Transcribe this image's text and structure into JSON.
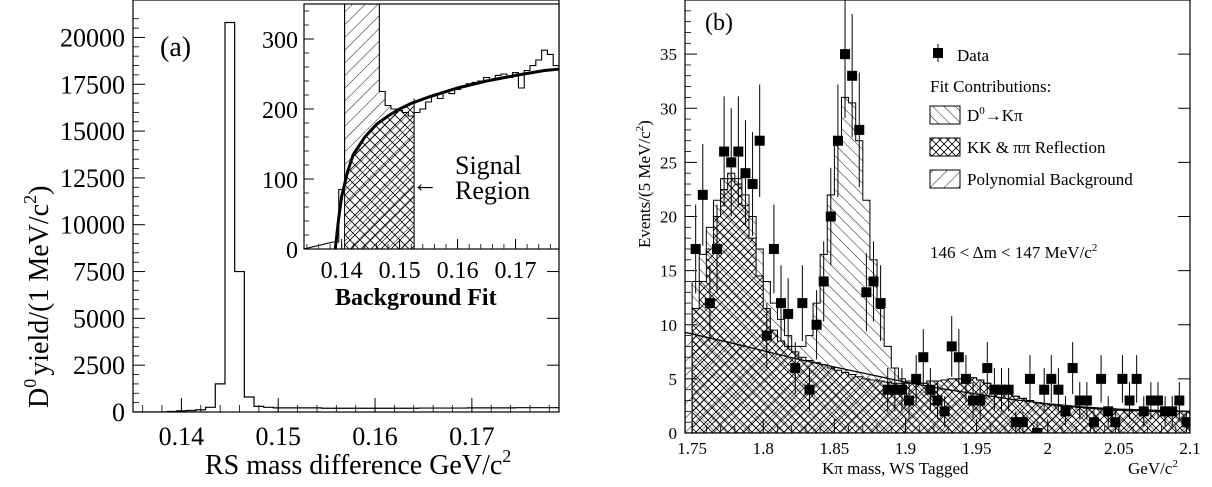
{
  "panel_a": {
    "label": "(a)",
    "ylabel_main": "yield/(1 MeV/c",
    "ylabel_tail": ")",
    "ylabel_d": "D",
    "ylabel_d_sup": "0",
    "ylabel_sup": "2",
    "xlabel_main": "RS mass difference   GeV/c",
    "xlabel_sup": "2",
    "chart_data": {
      "type": "bar",
      "xlim": [
        0.135,
        0.179
      ],
      "ylim": [
        0,
        22000
      ],
      "x_ticks": [
        "0.14",
        "0.15",
        "0.16",
        "0.17"
      ],
      "y_ticks": [
        "0",
        "2500",
        "5000",
        "7500",
        "10000",
        "12500",
        "15000",
        "17500",
        "20000"
      ],
      "bin_width": 0.001,
      "x": [
        0.139,
        0.14,
        0.141,
        0.142,
        0.143,
        0.144,
        0.145,
        0.146,
        0.147,
        0.148,
        0.149,
        0.15,
        0.155,
        0.16,
        0.165,
        0.17,
        0.175
      ],
      "values": [
        30,
        60,
        80,
        120,
        250,
        1500,
        20800,
        7500,
        800,
        300,
        250,
        220,
        200,
        200,
        210,
        220,
        230
      ]
    }
  },
  "inset": {
    "caption": "Background Fit",
    "annotation_line1": "Signal",
    "annotation_line2": "Region",
    "annotation_arrow": "←",
    "chart_data": {
      "type": "bar",
      "xlim": [
        0.1335,
        0.1775
      ],
      "ylim": [
        0,
        350
      ],
      "x_ticks": [
        "0.14",
        "0.15",
        "0.16",
        "0.17"
      ],
      "y_ticks": [
        "0",
        "100",
        "200",
        "300"
      ],
      "signal_region": [
        0.1405,
        0.1525
      ],
      "histogram": [
        [
          0.139,
          10
        ],
        [
          0.14,
          85
        ],
        [
          0.141,
          400
        ],
        [
          0.142,
          400
        ],
        [
          0.143,
          400
        ],
        [
          0.144,
          400
        ],
        [
          0.145,
          400
        ],
        [
          0.146,
          400
        ],
        [
          0.147,
          225
        ],
        [
          0.148,
          205
        ],
        [
          0.149,
          200
        ],
        [
          0.15,
          198
        ],
        [
          0.151,
          195
        ],
        [
          0.152,
          190
        ],
        [
          0.153,
          195
        ],
        [
          0.154,
          200
        ],
        [
          0.155,
          210
        ],
        [
          0.156,
          220
        ],
        [
          0.157,
          215
        ],
        [
          0.158,
          225
        ],
        [
          0.159,
          222
        ],
        [
          0.16,
          228
        ],
        [
          0.161,
          232
        ],
        [
          0.162,
          236
        ],
        [
          0.163,
          238
        ],
        [
          0.164,
          240
        ],
        [
          0.165,
          245
        ],
        [
          0.166,
          242
        ],
        [
          0.167,
          248
        ],
        [
          0.168,
          250
        ],
        [
          0.169,
          245
        ],
        [
          0.17,
          252
        ],
        [
          0.171,
          230
        ],
        [
          0.172,
          255
        ],
        [
          0.173,
          262
        ],
        [
          0.174,
          270
        ],
        [
          0.175,
          284
        ],
        [
          0.176,
          278
        ],
        [
          0.177,
          262
        ]
      ],
      "fit_curve": [
        [
          0.1389,
          0
        ],
        [
          0.1395,
          45
        ],
        [
          0.14,
          75
        ],
        [
          0.141,
          110
        ],
        [
          0.142,
          135
        ],
        [
          0.144,
          160
        ],
        [
          0.146,
          178
        ],
        [
          0.148,
          190
        ],
        [
          0.15,
          200
        ],
        [
          0.152,
          208
        ],
        [
          0.155,
          217
        ],
        [
          0.16,
          230
        ],
        [
          0.165,
          240
        ],
        [
          0.17,
          248
        ],
        [
          0.175,
          255
        ],
        [
          0.1775,
          257
        ]
      ]
    }
  },
  "panel_b": {
    "label": "(b)",
    "ylabel_main": "Events/(5 MeV/c",
    "ylabel_sup": "2",
    "ylabel_tail": ")",
    "xlabel": "Kπ mass, WS Tagged",
    "xunit_main": "GeV/c",
    "xunit_sup": "2",
    "legend": {
      "data": "Data",
      "contributions": "Fit Contributions:",
      "signal_main": "D",
      "signal_sup": "0",
      "signal_tail": "→Kπ",
      "reflection": "KK & ππ Reflection",
      "background": "Polynomial Background"
    },
    "cut_label": "146 < Δm < 147 MeV/c",
    "cut_label_sup": "2",
    "chart_data": {
      "type": "scatter",
      "xlim": [
        1.745,
        2.1
      ],
      "ylim": [
        0,
        40
      ],
      "x_ticks": [
        "1.75",
        "1.8",
        "1.85",
        "1.9",
        "1.95",
        "2",
        "2.05",
        "2.1"
      ],
      "y_ticks": [
        "0",
        "5",
        "10",
        "15",
        "20",
        "25",
        "30",
        "35"
      ],
      "data_points": {
        "x": [
          1.7525,
          1.7575,
          1.7625,
          1.7675,
          1.7725,
          1.7775,
          1.7825,
          1.7875,
          1.7925,
          1.7975,
          1.8025,
          1.8075,
          1.8125,
          1.8175,
          1.8225,
          1.8275,
          1.8325,
          1.8375,
          1.8425,
          1.8475,
          1.8525,
          1.8575,
          1.8625,
          1.8675,
          1.8725,
          1.8775,
          1.8825,
          1.8875,
          1.8925,
          1.8975,
          1.9025,
          1.9075,
          1.9125,
          1.9175,
          1.9225,
          1.9275,
          1.9325,
          1.9375,
          1.9425,
          1.9475,
          1.9525,
          1.9575,
          1.9625,
          1.9675,
          1.9725,
          1.9775,
          1.9825,
          1.9875,
          1.9925,
          1.9975,
          2.0025,
          2.0075,
          2.0125,
          2.0175,
          2.0225,
          2.0275,
          2.0325,
          2.0375,
          2.0425,
          2.0475,
          2.0525,
          2.0575,
          2.0625,
          2.0675,
          2.0725,
          2.0775,
          2.0825,
          2.0875,
          2.0925,
          2.0975
        ],
        "y": [
          17,
          22,
          12,
          17,
          26,
          25,
          26,
          24,
          23,
          27,
          9,
          17,
          12,
          11,
          6,
          12,
          4,
          10,
          14,
          20,
          27,
          35,
          33,
          28,
          13,
          14,
          12,
          4,
          4,
          4,
          3,
          5,
          7,
          4,
          3,
          2,
          8,
          7,
          5,
          3,
          3,
          6,
          4,
          4,
          4,
          1,
          1,
          5,
          0,
          4,
          5,
          4,
          2,
          6,
          3,
          3,
          1,
          5,
          2,
          1,
          5,
          3,
          5,
          2,
          3,
          3,
          2,
          2,
          3,
          1
        ],
        "errors": [
          4.1,
          4.7,
          3.5,
          4.1,
          5.1,
          5.0,
          5.1,
          4.9,
          4.8,
          5.2,
          3.0,
          4.1,
          3.5,
          3.3,
          2.4,
          3.5,
          2.0,
          3.2,
          3.7,
          4.5,
          5.2,
          5.9,
          5.7,
          5.3,
          3.6,
          3.7,
          3.5,
          2.0,
          2.0,
          2.0,
          1.7,
          2.2,
          2.6,
          2.0,
          1.7,
          1.4,
          2.8,
          2.6,
          2.2,
          1.7,
          1.7,
          2.4,
          2.0,
          2.0,
          2.0,
          1.0,
          1.0,
          2.2,
          1.0,
          2.0,
          2.2,
          2.0,
          1.4,
          2.4,
          1.7,
          1.7,
          1.0,
          2.2,
          1.4,
          1.0,
          2.2,
          1.7,
          2.2,
          1.4,
          1.7,
          1.7,
          1.4,
          1.4,
          1.7,
          1.0
        ]
      },
      "total_fit": {
        "x": [
          1.75,
          1.755,
          1.76,
          1.765,
          1.77,
          1.775,
          1.78,
          1.785,
          1.79,
          1.795,
          1.8,
          1.805,
          1.81,
          1.815,
          1.82,
          1.825,
          1.83,
          1.835,
          1.84,
          1.845,
          1.85,
          1.855,
          1.86,
          1.865,
          1.87,
          1.875,
          1.88,
          1.885,
          1.89,
          1.895,
          1.9,
          1.905,
          1.91,
          1.915,
          1.92,
          1.925,
          1.93,
          1.935,
          1.94,
          1.945,
          1.95,
          1.955,
          1.96,
          1.965,
          1.97,
          1.975,
          1.98,
          1.985,
          1.99,
          1.995,
          2.0,
          2.005,
          2.01,
          2.015,
          2.02,
          2.025,
          2.03,
          2.035,
          2.04,
          2.045,
          2.05,
          2.055,
          2.06,
          2.065,
          2.07,
          2.075,
          2.08,
          2.085,
          2.09,
          2.095
        ],
        "y": [
          14,
          16.5,
          19,
          21.5,
          23.5,
          24,
          23.5,
          22,
          20,
          17,
          14,
          12,
          10.5,
          9,
          8,
          8,
          9,
          12,
          16.5,
          22,
          27,
          31,
          30.5,
          27,
          21.5,
          16,
          11.5,
          8,
          6,
          5,
          4.8,
          4.6,
          4.6,
          4.8,
          4.8,
          4.9,
          5,
          5,
          5.1,
          5.1,
          4.9,
          4.6,
          4.3,
          4,
          3.7,
          3.4,
          3.2,
          3,
          2.8,
          2.7,
          2.6,
          2.5,
          2.45,
          2.4,
          2.35,
          2.3,
          2.25,
          2.2,
          2.15,
          2.1,
          2.1,
          2.05,
          2.05,
          2,
          2,
          2,
          2,
          2,
          2,
          2
        ]
      },
      "bkg_plus_reflection": {
        "x": [
          1.75,
          1.755,
          1.76,
          1.765,
          1.77,
          1.775,
          1.78,
          1.785,
          1.79,
          1.795,
          1.8,
          1.805,
          1.81,
          1.815,
          1.82,
          1.825,
          1.83,
          1.835,
          1.84,
          1.845,
          1.85,
          1.855,
          1.86,
          1.865,
          1.87,
          1.875,
          1.88,
          1.885,
          1.89,
          1.895,
          1.9,
          1.905,
          1.91,
          1.915,
          1.92,
          1.925,
          1.93,
          1.935,
          1.94,
          1.945,
          1.95,
          1.955,
          1.96,
          1.965,
          1.97,
          1.975,
          1.98,
          1.985,
          1.99,
          1.995,
          2.0,
          2.005,
          2.01,
          2.015,
          2.02,
          2.025,
          2.03,
          2.035,
          2.04,
          2.045,
          2.05,
          2.055,
          2.06,
          2.065,
          2.07,
          2.075,
          2.08,
          2.085,
          2.09,
          2.095
        ],
        "y": [
          11.5,
          14,
          17,
          20,
          22.5,
          23.5,
          23,
          21,
          18,
          14.5,
          11.5,
          9.5,
          8.5,
          8,
          7.5,
          7,
          6.7,
          6.5,
          6.3,
          6,
          5.8,
          5.6,
          5.4,
          5.2,
          5,
          4.9,
          4.8,
          4.7,
          4.6,
          4.6,
          4.6,
          4.6,
          4.6,
          4.8,
          4.8,
          4.9,
          5,
          5,
          5.1,
          5.1,
          4.9,
          4.6,
          4.3,
          4,
          3.7,
          3.4,
          3.2,
          3,
          2.8,
          2.7,
          2.6,
          2.5,
          2.45,
          2.4,
          2.35,
          2.3,
          2.25,
          2.2,
          2.15,
          2.1,
          2.1,
          2.05,
          2.05,
          2,
          2,
          2,
          2,
          2,
          2,
          2
        ]
      },
      "polynomial_background": {
        "x": [
          1.745,
          1.775,
          1.8,
          1.825,
          1.85,
          1.875,
          1.9,
          1.925,
          1.95,
          1.975,
          2.0,
          2.025,
          2.05,
          2.075,
          2.1
        ],
        "y": [
          9.3,
          8.4,
          7.6,
          6.8,
          6.1,
          5.4,
          4.7,
          4.1,
          3.6,
          3.1,
          2.7,
          2.4,
          2.2,
          2.1,
          2.0
        ]
      }
    }
  }
}
